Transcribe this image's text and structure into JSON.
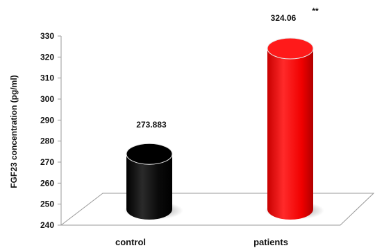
{
  "chart_data": {
    "type": "bar",
    "style": "3d-cylinder",
    "title": "",
    "xlabel": "",
    "ylabel": "FGF23 concentration  (pg/ml)",
    "categories": [
      "control",
      "patients"
    ],
    "values": [
      273.883,
      324.06
    ],
    "value_labels": [
      "273.883",
      "324.06"
    ],
    "annotations": [
      {
        "category": "patients",
        "text": "**"
      }
    ],
    "bar_colors": [
      "#000000",
      "#ff0000"
    ],
    "ylim": [
      240,
      330
    ],
    "yticks": [
      "240",
      "250",
      "260",
      "270",
      "280",
      "290",
      "300",
      "310",
      "320",
      "330"
    ],
    "grid": false,
    "legend": "none"
  }
}
